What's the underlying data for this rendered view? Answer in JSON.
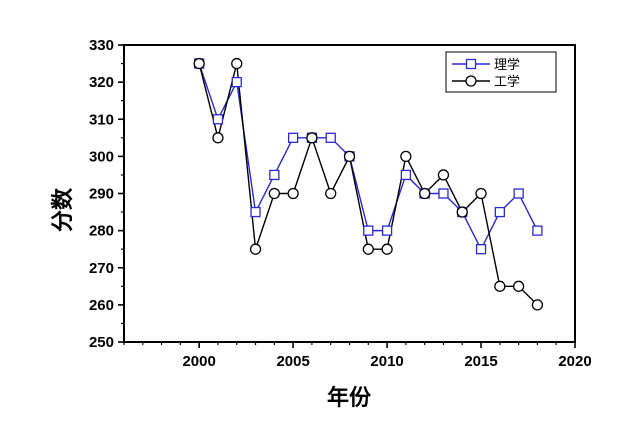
{
  "chart_data": {
    "type": "line",
    "title": "",
    "xlabel": "年份",
    "ylabel": "分数",
    "xlim": [
      1996,
      2020
    ],
    "ylim": [
      250,
      330
    ],
    "xticks": [
      2000,
      2005,
      2010,
      2015,
      2020
    ],
    "yticks": [
      250,
      260,
      270,
      280,
      290,
      300,
      310,
      320,
      330
    ],
    "grid": false,
    "legend_position": "top-right",
    "x": [
      2000,
      2001,
      2002,
      2003,
      2004,
      2005,
      2006,
      2007,
      2008,
      2009,
      2010,
      2011,
      2012,
      2013,
      2014,
      2015,
      2016,
      2017,
      2018
    ],
    "series": [
      {
        "name": "理学",
        "marker": "square",
        "color": "#2a2ad0",
        "values": [
          325,
          310,
          320,
          285,
          295,
          305,
          305,
          305,
          300,
          280,
          280,
          295,
          290,
          290,
          285,
          275,
          285,
          290,
          280
        ]
      },
      {
        "name": "工学",
        "marker": "circle",
        "color": "#000000",
        "values": [
          325,
          305,
          325,
          275,
          290,
          290,
          305,
          290,
          300,
          275,
          275,
          300,
          290,
          295,
          285,
          290,
          265,
          265,
          260
        ]
      }
    ]
  }
}
